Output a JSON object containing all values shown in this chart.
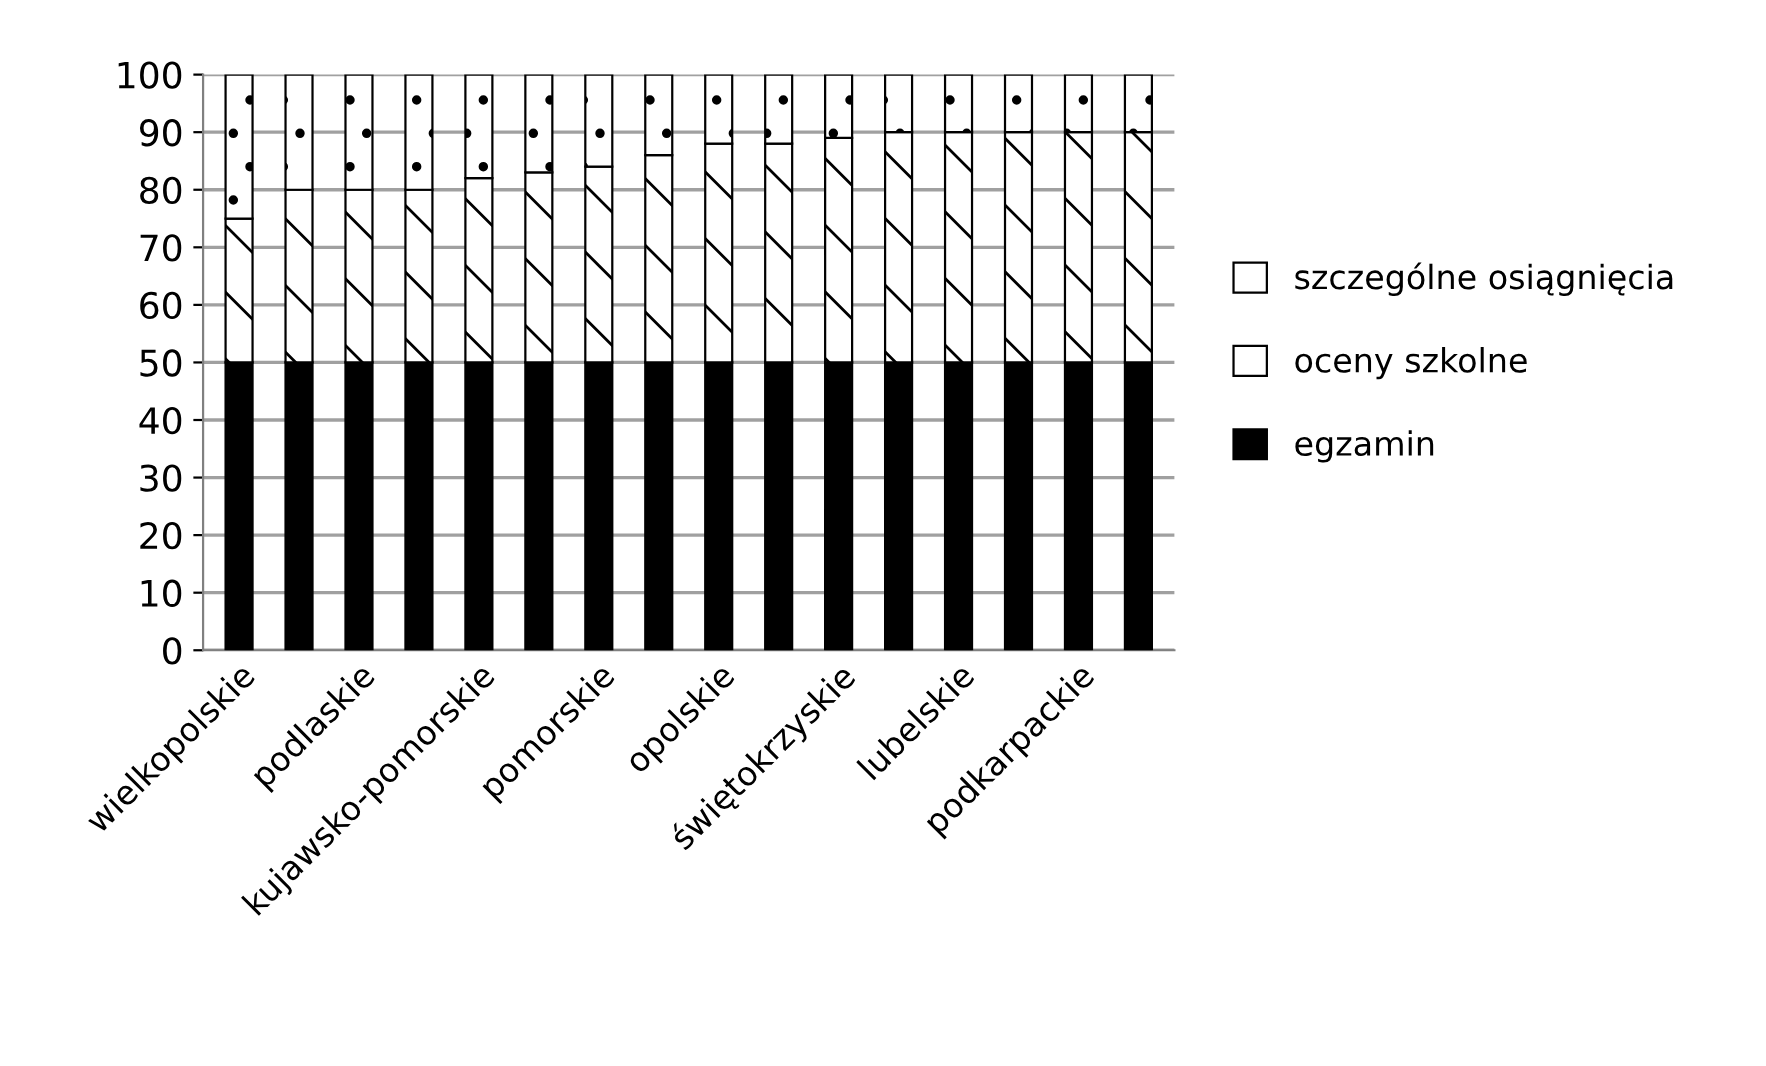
{
  "chart_data": {
    "type": "bar",
    "stacked": true,
    "categories": [
      "wielkopolskie",
      null,
      "podlaskie",
      null,
      "kujawsko-pomorskie",
      null,
      "pomorskie",
      null,
      "opolskie",
      null,
      "świętokrzyskie",
      null,
      "lubelskie",
      null,
      "podkarpackie",
      null
    ],
    "series": [
      {
        "name": "egzamin",
        "color": "#000000",
        "values": [
          50,
          50,
          50,
          50,
          50,
          50,
          50,
          50,
          50,
          50,
          50,
          50,
          50,
          50,
          50,
          50
        ]
      },
      {
        "name": "oceny szkolne",
        "color": "#ffffff",
        "values": [
          25,
          30,
          30,
          30,
          32,
          33,
          34,
          36,
          38,
          38,
          39,
          40,
          40,
          40,
          40,
          40
        ]
      },
      {
        "name": "szczególne osiągnięcia",
        "color": "#ffffff",
        "values": [
          25,
          20,
          20,
          20,
          18,
          17,
          16,
          14,
          12,
          12,
          11,
          10,
          10,
          10,
          10,
          10
        ]
      }
    ],
    "ylim": [
      0,
      100
    ],
    "yticks": [
      0,
      10,
      20,
      30,
      40,
      50,
      60,
      70,
      80,
      90,
      100
    ],
    "grid": "y",
    "legend": "right"
  }
}
